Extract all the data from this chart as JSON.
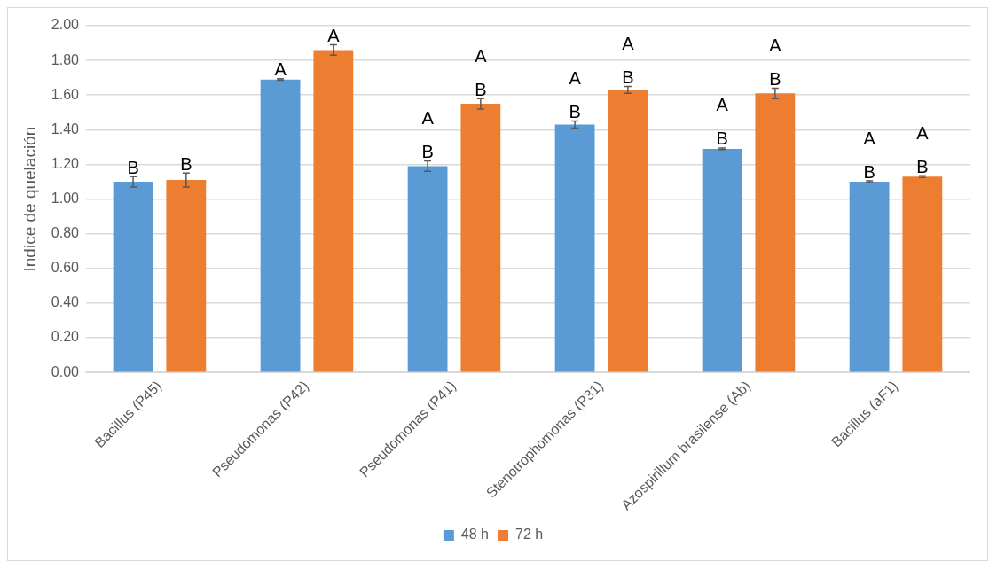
{
  "chart_data": {
    "type": "bar",
    "ylabel": "Indice de quelación",
    "categories": [
      "Bacillus (P45)",
      "Pseudomonas (P42)",
      "Pseudomonas (P41)",
      "Stenotrophomonas (P31)",
      "Azospirillum brasilense (Ab)",
      "Bacillus (aF1)"
    ],
    "series": [
      {
        "name": "48 h",
        "color": "#5b9bd5",
        "values": [
          1.1,
          1.69,
          1.19,
          1.43,
          1.29,
          1.1
        ],
        "errors": [
          0.03,
          0.005,
          0.03,
          0.02,
          0.005,
          0.005
        ],
        "value_labels": [
          "B",
          "A",
          "A\nB",
          "A\nB",
          "A\nB",
          "A\nB"
        ]
      },
      {
        "name": "72 h",
        "color": "#ed7d31",
        "values": [
          1.11,
          1.86,
          1.55,
          1.63,
          1.61,
          1.13
        ],
        "errors": [
          0.04,
          0.03,
          0.03,
          0.02,
          0.03,
          0.005
        ],
        "value_labels": [
          "B",
          "A",
          "A\nB",
          "A\nB",
          "A\nB",
          "A\nB"
        ]
      }
    ],
    "ylim": [
      0,
      2
    ],
    "yticks": [
      {
        "value": 0,
        "label": "0.00"
      },
      {
        "value": 0.2,
        "label": "0.20"
      },
      {
        "value": 0.4,
        "label": "0.40"
      },
      {
        "value": 0.6,
        "label": "0.60"
      },
      {
        "value": 0.8,
        "label": "0.80"
      },
      {
        "value": 1,
        "label": "1.00"
      },
      {
        "value": 1.2,
        "label": "1.20"
      },
      {
        "value": 1.4,
        "label": "1.40"
      },
      {
        "value": 1.6,
        "label": "1.60"
      },
      {
        "value": 1.8,
        "label": "1.80"
      },
      {
        "value": 2,
        "label": "2.00"
      }
    ],
    "grid": "y",
    "legend": "bottom"
  }
}
